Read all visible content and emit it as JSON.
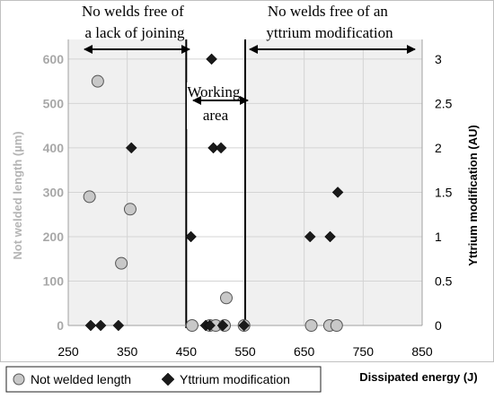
{
  "chart_data": {
    "type": "scatter",
    "xlabel": "Dissipated energy (J)",
    "ylabel_left": "Not welded length (µm)",
    "ylabel_right": "Yttrium modification  (AU)",
    "x_ticks": [
      "250",
      "350",
      "450",
      "550",
      "650",
      "750",
      "850"
    ],
    "y_left_ticks": [
      "0",
      "100",
      "200",
      "300",
      "400",
      "500",
      "600"
    ],
    "y_right_ticks": [
      "0",
      "0.5",
      "1",
      "1.5",
      "2",
      "2.5",
      "3"
    ],
    "xlim": [
      250,
      850
    ],
    "ylim_left": [
      0,
      620
    ],
    "ylim_right": [
      0,
      3.1
    ],
    "legend_position": "bottom-left",
    "series": [
      {
        "name": "Not welded length",
        "axis": "left",
        "marker": "circle",
        "color": "#c8c8c8",
        "points": [
          {
            "x": 286,
            "y": 290
          },
          {
            "x": 300,
            "y": 550
          },
          {
            "x": 340,
            "y": 140
          },
          {
            "x": 355,
            "y": 262
          },
          {
            "x": 460,
            "y": 0
          },
          {
            "x": 490,
            "y": 0
          },
          {
            "x": 500,
            "y": 0
          },
          {
            "x": 515,
            "y": 0
          },
          {
            "x": 518,
            "y": 62
          },
          {
            "x": 548,
            "y": 0
          },
          {
            "x": 662,
            "y": 0
          },
          {
            "x": 693,
            "y": 0
          },
          {
            "x": 705,
            "y": 0
          }
        ]
      },
      {
        "name": "Yttrium modification",
        "axis": "right",
        "marker": "diamond",
        "color": "#1a1a1a",
        "points": [
          {
            "x": 288,
            "y": 0
          },
          {
            "x": 305,
            "y": 0
          },
          {
            "x": 335,
            "y": 0
          },
          {
            "x": 357,
            "y": 2
          },
          {
            "x": 458,
            "y": 1
          },
          {
            "x": 483,
            "y": 0
          },
          {
            "x": 490,
            "y": 0
          },
          {
            "x": 493,
            "y": 3
          },
          {
            "x": 496,
            "y": 2
          },
          {
            "x": 509,
            "y": 2
          },
          {
            "x": 512,
            "y": 0
          },
          {
            "x": 548,
            "y": 0
          },
          {
            "x": 660,
            "y": 1
          },
          {
            "x": 694,
            "y": 1
          },
          {
            "x": 707,
            "y": 1.5
          }
        ]
      }
    ],
    "shaded_regions": [
      {
        "from": 250,
        "to": 450,
        "color": "#f0f0f0"
      },
      {
        "from": 550,
        "to": 850,
        "color": "#f0f0f0"
      }
    ],
    "region_borders": [
      450,
      550
    ],
    "annotations": {
      "left_region": "No welds free of a lack of joining",
      "right_region": "No welds free of an yttrium modification",
      "working_area": "Working area"
    }
  }
}
